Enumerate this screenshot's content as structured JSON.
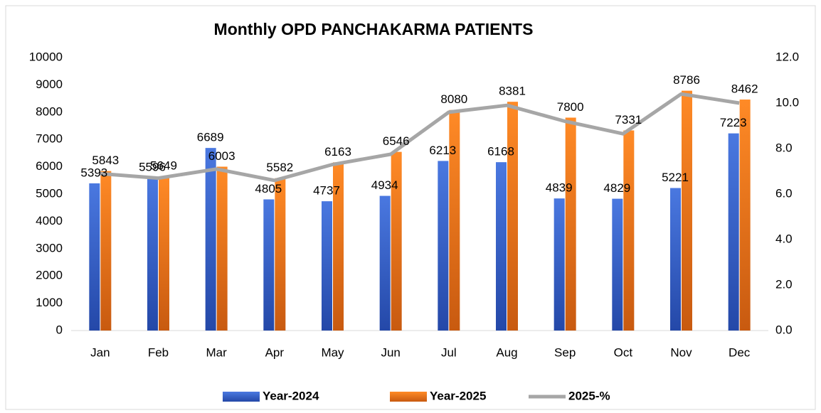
{
  "chart_data": {
    "type": "bar",
    "title": "Monthly OPD PANCHAKARMA PATIENTS",
    "categories": [
      "Jan",
      "Feb",
      "Mar",
      "Apr",
      "May",
      "Jun",
      "Jul",
      "Aug",
      "Sep",
      "Oct",
      "Nov",
      "Dec"
    ],
    "series": [
      {
        "name": "Year-2024",
        "color": "#3a66cc",
        "values": [
          5393,
          5596,
          6689,
          4805,
          4737,
          4934,
          6213,
          6168,
          4839,
          4829,
          5221,
          7223
        ]
      },
      {
        "name": "Year-2025",
        "color": "#f07c1e",
        "values": [
          5843,
          5649,
          6003,
          5582,
          6163,
          6546,
          8080,
          8381,
          7800,
          7331,
          8786,
          8462
        ]
      },
      {
        "name": "2025-%",
        "color": "#a6a6a6",
        "axis": "y2",
        "values": [
          6.9,
          6.7,
          7.1,
          6.6,
          7.3,
          7.75,
          9.6,
          9.9,
          9.2,
          8.65,
          10.4,
          10.0
        ]
      }
    ],
    "ylim": [
      0,
      10000
    ],
    "yticks": [
      0,
      1000,
      2000,
      3000,
      4000,
      5000,
      6000,
      7000,
      8000,
      9000,
      10000
    ],
    "y2lim": [
      0,
      12
    ],
    "y2ticks": [
      {
        "value": 0,
        "label": "0.0"
      },
      {
        "value": 2,
        "label": "2.0"
      },
      {
        "value": 4,
        "label": "4.0"
      },
      {
        "value": 6,
        "label": "6.0"
      },
      {
        "value": 8,
        "label": "8.0"
      },
      {
        "value": 10,
        "label": "10.0"
      },
      {
        "value": 12,
        "label": "12.0"
      }
    ],
    "grid": false,
    "legend": "bottom"
  }
}
